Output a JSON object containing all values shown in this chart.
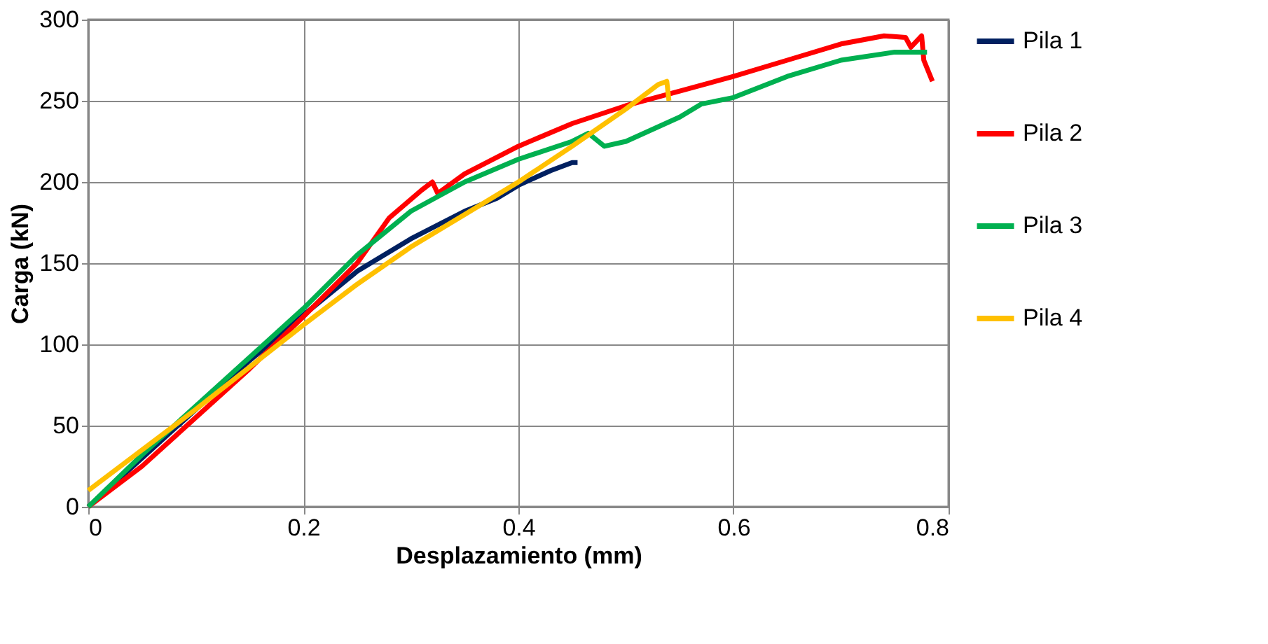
{
  "chart_data": {
    "type": "line",
    "xlabel": "Desplazamiento (mm)",
    "ylabel": "Carga (kN)",
    "xlim": [
      0,
      0.8
    ],
    "xticks": [
      {
        "value": 0,
        "label": "0"
      },
      0.2,
      0.4,
      0.6,
      0.8
    ],
    "ylim": [
      0,
      300
    ],
    "yticks": [
      0,
      50,
      100,
      150,
      200,
      250,
      300
    ],
    "grid": true,
    "legend": "right",
    "line_style": "solid",
    "marker": "none",
    "series": [
      {
        "name": "Pila 1",
        "color": "#002060",
        "x": [
          0,
          0.05,
          0.1,
          0.15,
          0.2,
          0.25,
          0.3,
          0.35,
          0.38,
          0.4,
          0.43,
          0.45,
          0.455
        ],
        "values": [
          0,
          30,
          60,
          90,
          118,
          145,
          165,
          182,
          190,
          198,
          207,
          212,
          212
        ]
      },
      {
        "name": "Pila 2",
        "color": "#ff0000",
        "x": [
          0,
          0.05,
          0.1,
          0.15,
          0.2,
          0.25,
          0.28,
          0.31,
          0.32,
          0.325,
          0.35,
          0.4,
          0.45,
          0.5,
          0.55,
          0.6,
          0.65,
          0.7,
          0.74,
          0.76,
          0.765,
          0.775,
          0.777,
          0.785
        ],
        "values": [
          0,
          25,
          55,
          85,
          117,
          150,
          178,
          195,
          200,
          193,
          205,
          222,
          236,
          247,
          256,
          265,
          275,
          285,
          290,
          289,
          283,
          290,
          275,
          262
        ]
      },
      {
        "name": "Pila 3",
        "color": "#00b050",
        "x": [
          0,
          0.05,
          0.1,
          0.15,
          0.2,
          0.25,
          0.3,
          0.35,
          0.4,
          0.45,
          0.465,
          0.48,
          0.5,
          0.55,
          0.57,
          0.6,
          0.65,
          0.7,
          0.75,
          0.78
        ],
        "values": [
          0,
          32,
          62,
          92,
          122,
          155,
          182,
          200,
          214,
          225,
          230,
          222,
          225,
          240,
          248,
          252,
          265,
          275,
          280,
          280
        ]
      },
      {
        "name": "Pila 4",
        "color": "#ffc000",
        "x": [
          0,
          0.05,
          0.1,
          0.15,
          0.2,
          0.25,
          0.3,
          0.35,
          0.4,
          0.45,
          0.5,
          0.53,
          0.538,
          0.54
        ],
        "values": [
          10,
          35,
          60,
          86,
          112,
          137,
          160,
          180,
          200,
          222,
          245,
          260,
          262,
          250
        ]
      }
    ]
  }
}
